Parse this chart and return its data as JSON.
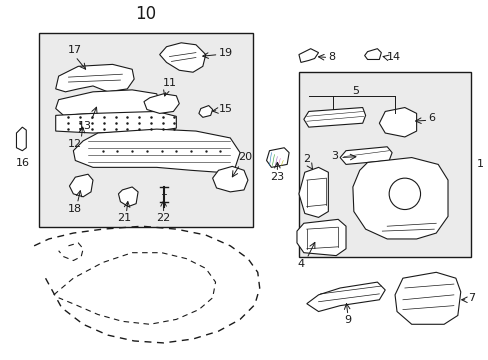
{
  "bg_color": "#ffffff",
  "fig_width": 4.89,
  "fig_height": 3.6,
  "dpi": 100,
  "dark": "#1a1a1a",
  "gray": "#aaaaaa",
  "box1_fill": "#ebebeb",
  "box2_fill": "#ebebeb"
}
